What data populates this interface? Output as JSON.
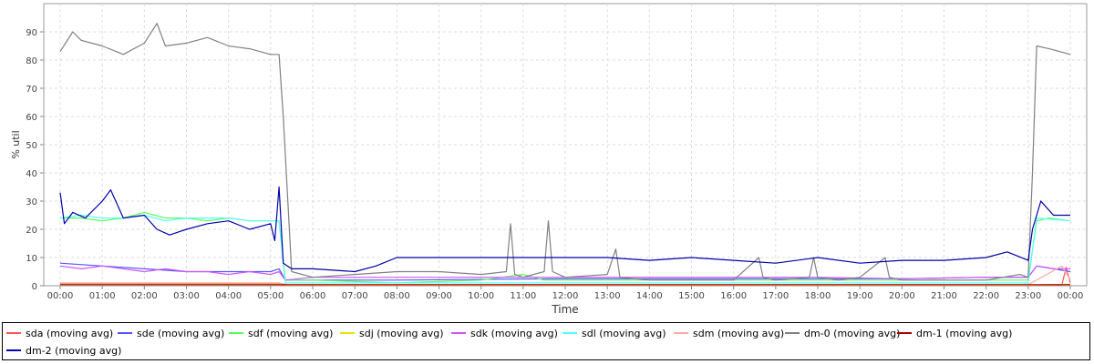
{
  "chart_data": {
    "type": "line",
    "xlabel": "Time",
    "ylabel": "% util",
    "ylim": [
      0,
      100
    ],
    "xlim": [
      0,
      24
    ],
    "yticks": [
      0,
      10,
      20,
      30,
      40,
      50,
      60,
      70,
      80,
      90
    ],
    "xtick_labels": [
      "00:00",
      "01:00",
      "02:00",
      "03:00",
      "04:00",
      "05:00",
      "06:00",
      "07:00",
      "08:00",
      "09:00",
      "10:00",
      "11:00",
      "12:00",
      "13:00",
      "14:00",
      "15:00",
      "16:00",
      "17:00",
      "18:00",
      "19:00",
      "20:00",
      "21:00",
      "22:00",
      "23:00",
      "00:00"
    ],
    "grid": true,
    "legend_position": "bottom",
    "series": [
      {
        "name": "sda (moving avg)",
        "color": "#ff5555",
        "x": [
          0,
          5.2,
          5.3,
          23.8,
          23.9,
          24
        ],
        "y": [
          0.8,
          0.8,
          0.2,
          0.3,
          6.5,
          1
        ]
      },
      {
        "name": "sde (moving avg)",
        "color": "#5555ff",
        "x": [
          0,
          1,
          2,
          3,
          4,
          5,
          5.2,
          5.35,
          6,
          8,
          12,
          16,
          20,
          22,
          23,
          23.2,
          23.6,
          24
        ],
        "y": [
          8,
          7,
          6,
          5,
          5,
          5,
          6,
          2,
          2,
          2,
          2.5,
          2.5,
          2.5,
          3,
          3,
          7,
          6,
          5
        ]
      },
      {
        "name": "sdf (moving avg)",
        "color": "#55ff55",
        "x": [
          0,
          0.5,
          1,
          1.5,
          2,
          2.5,
          3,
          3.5,
          4,
          4.5,
          5,
          5.2,
          5.35,
          6,
          8,
          10,
          11,
          11.5,
          12,
          14,
          16,
          18,
          20,
          22,
          23,
          23.2,
          23.5,
          24
        ],
        "y": [
          24,
          24,
          23,
          24,
          26,
          24,
          24,
          23,
          24,
          23,
          23,
          23,
          2,
          2,
          1,
          2,
          4,
          2,
          2,
          2,
          2,
          2,
          2,
          2,
          2,
          23,
          24,
          23
        ]
      },
      {
        "name": "sdj (moving avg)",
        "color": "#f0e000",
        "x": [
          0,
          5.2,
          5.4,
          23,
          24
        ],
        "y": [
          0.5,
          0.5,
          0.3,
          0.3,
          0.5
        ]
      },
      {
        "name": "sdk (moving avg)",
        "color": "#cc55ff",
        "x": [
          0,
          0.5,
          1,
          1.5,
          2,
          2.5,
          3,
          3.5,
          4,
          4.5,
          5,
          5.2,
          5.35,
          6,
          8,
          10,
          12,
          14,
          16,
          18,
          20,
          22,
          23,
          23.2,
          23.6,
          24
        ],
        "y": [
          7,
          6,
          7,
          6,
          5,
          6,
          5,
          5,
          4,
          5,
          4,
          5,
          2,
          3,
          3,
          3,
          3,
          3,
          3,
          3,
          2.5,
          3,
          3,
          7,
          6,
          6
        ]
      },
      {
        "name": "sdl (moving avg)",
        "color": "#55ffff",
        "x": [
          0,
          0.5,
          1,
          1.5,
          2,
          2.5,
          3,
          3.5,
          4,
          4.5,
          5,
          5.2,
          5.35,
          23,
          23.2,
          24
        ],
        "y": [
          24,
          25,
          24,
          24,
          25,
          23,
          24,
          24,
          24,
          23,
          23,
          23,
          1,
          1,
          24,
          23
        ]
      },
      {
        "name": "sdm (moving avg)",
        "color": "#ffaaaa",
        "x": [
          0,
          5.2,
          5.4,
          23,
          23.8,
          24
        ],
        "y": [
          1,
          1,
          0.4,
          0.4,
          7,
          2
        ]
      },
      {
        "name": "dm-0 (moving avg)",
        "color": "#808080",
        "x": [
          0,
          0.3,
          0.5,
          1,
          1.5,
          2,
          2.3,
          2.5,
          3,
          3.5,
          4,
          4.5,
          5,
          5.2,
          5.3,
          5.5,
          6,
          7,
          8,
          9,
          10,
          10.6,
          10.7,
          10.8,
          11,
          11.5,
          11.6,
          11.7,
          12,
          13,
          13.2,
          13.3,
          14,
          15,
          16,
          16.6,
          16.7,
          17,
          17.8,
          17.9,
          18,
          18.5,
          19,
          19.6,
          19.7,
          20,
          21,
          22,
          22.8,
          23,
          23.1,
          23.2,
          23.5,
          24
        ],
        "y": [
          83,
          90,
          87,
          85,
          82,
          86,
          93,
          85,
          86,
          88,
          85,
          84,
          82,
          82,
          60,
          5,
          3,
          4,
          5,
          5,
          4,
          5,
          22,
          4,
          3,
          5,
          23,
          5,
          3,
          4,
          13,
          3,
          2,
          2,
          2,
          10,
          3,
          2,
          3,
          10,
          3,
          2,
          3,
          10,
          3,
          2,
          2,
          2,
          4,
          3,
          40,
          85,
          84,
          82
        ]
      },
      {
        "name": "dm-1 (moving avg)",
        "color": "#aa0000",
        "x": [
          0,
          24
        ],
        "y": [
          0.4,
          0.4
        ]
      },
      {
        "name": "dm-2 (moving avg)",
        "color": "#0000aa",
        "x": [
          0,
          0.1,
          0.3,
          0.6,
          1,
          1.2,
          1.5,
          2,
          2.3,
          2.6,
          3,
          3.5,
          4,
          4.5,
          5,
          5.1,
          5.2,
          5.3,
          5.5,
          6,
          7,
          7.5,
          8,
          9,
          10,
          11,
          12,
          13,
          14,
          15,
          16,
          17,
          18,
          19,
          20,
          21,
          22,
          22.5,
          23,
          23.1,
          23.3,
          23.6,
          24
        ],
        "y": [
          33,
          22,
          26,
          24,
          30,
          34,
          24,
          25,
          20,
          18,
          20,
          22,
          23,
          20,
          22,
          16,
          35,
          8,
          6,
          6,
          5,
          7,
          10,
          10,
          10,
          10,
          10,
          10,
          9,
          10,
          9,
          8,
          10,
          8,
          9,
          9,
          10,
          12,
          9,
          20,
          30,
          25,
          25
        ]
      }
    ]
  }
}
